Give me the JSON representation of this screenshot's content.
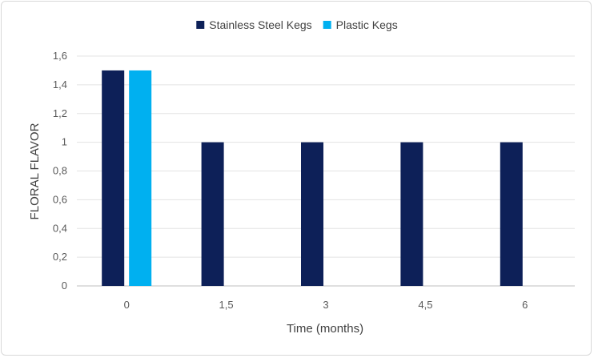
{
  "chart_data": {
    "type": "bar",
    "title": "",
    "xlabel": "Time (months)",
    "ylabel": "FLORAL FLAVOR",
    "categories": [
      "0",
      "1,5",
      "3",
      "4,5",
      "6"
    ],
    "series": [
      {
        "name": "Stainless Steel Kegs",
        "color": "#0d2058",
        "values": [
          1.5,
          1,
          1,
          1,
          1
        ]
      },
      {
        "name": "Plastic Kegs",
        "color": "#00b0f0",
        "values": [
          1.5,
          null,
          null,
          null,
          null
        ]
      }
    ],
    "ylim": [
      0,
      1.6
    ],
    "yticks": [
      "0",
      "0,2",
      "0,4",
      "0,6",
      "0,8",
      "1",
      "1,2",
      "1,4",
      "1,6"
    ],
    "grid": true,
    "legend_position": "top"
  }
}
